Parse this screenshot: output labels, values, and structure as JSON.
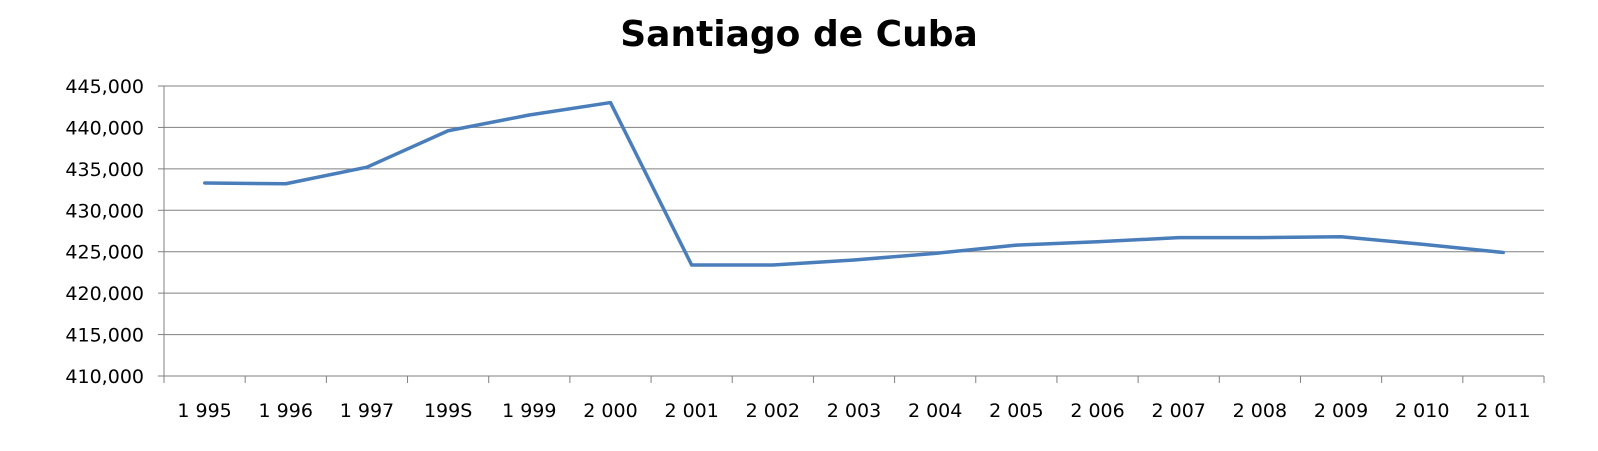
{
  "chart_data": {
    "type": "line",
    "title": "Santiago de Cuba",
    "categories": [
      "1 995",
      "1 996",
      "1 997",
      "199S",
      "1 999",
      "2 000",
      "2 001",
      "2 002",
      "2 003",
      "2 004",
      "2 005",
      "2 006",
      "2 007",
      "2 008",
      "2 009",
      "2 010",
      "2 011"
    ],
    "series": [
      {
        "values": [
          433300,
          433200,
          435200,
          439600,
          441500,
          443000,
          423400,
          423400,
          424000,
          424800,
          425800,
          426200,
          426700,
          426700,
          426800,
          425900,
          424900
        ]
      }
    ],
    "y_tick_labels": [
      "410,000",
      "415,000",
      "420,000",
      "425,000",
      "430,000",
      "435,000",
      "440,000",
      "445,000"
    ],
    "ylim": [
      410000,
      445000
    ],
    "grid": true,
    "legend": "none",
    "colors": {
      "line": "#4a7ebb",
      "grid": "#808080",
      "axis": "#808080"
    }
  }
}
